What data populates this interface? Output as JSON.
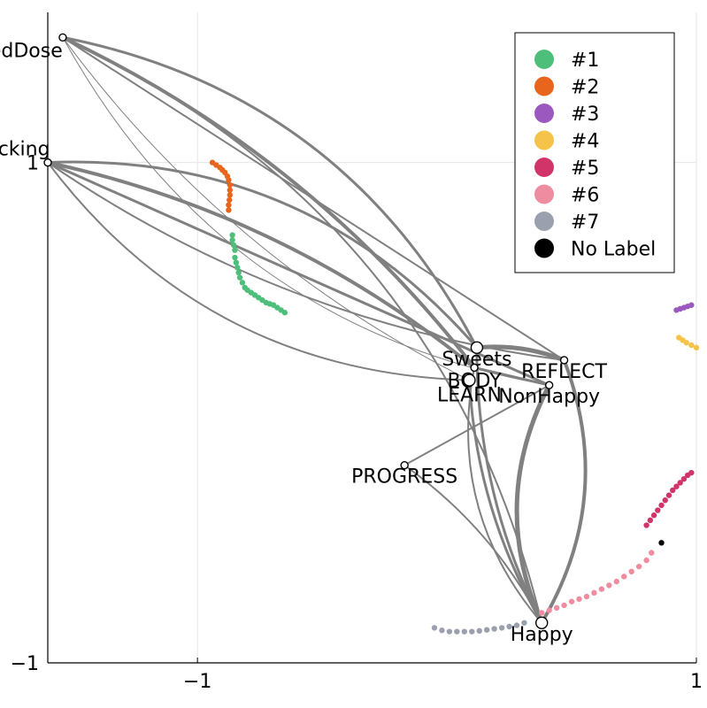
{
  "chart_data": {
    "type": "scatter",
    "title": "",
    "xlabel": "",
    "ylabel": "",
    "xlim": [
      -1.6,
      1.0
    ],
    "ylim": [
      -1.0,
      1.6
    ],
    "xticks": [
      {
        "value": -1,
        "label": "−1"
      },
      {
        "value": 1,
        "label": "1"
      }
    ],
    "yticks": [
      {
        "value": -1,
        "label": "−1"
      },
      {
        "value": 1,
        "label": "1"
      }
    ],
    "grid": true,
    "legend_position": "top-right",
    "legend": [
      {
        "label": "#1",
        "color": "#4dbf7a"
      },
      {
        "label": "#2",
        "color": "#e8651e"
      },
      {
        "label": "#3",
        "color": "#9b59c0"
      },
      {
        "label": "#4",
        "color": "#f5c24a"
      },
      {
        "label": "#5",
        "color": "#d13468"
      },
      {
        "label": "#6",
        "color": "#f08ca0"
      },
      {
        "label": "#7",
        "color": "#9aa0ae"
      },
      {
        "label": "No Label",
        "color": "#000000"
      }
    ],
    "nodes": [
      {
        "name": "SkippedDose",
        "x": -1.54,
        "y": 1.5,
        "big": false,
        "label_dx": -72,
        "label_dy": 22
      },
      {
        "name": "eTracking",
        "x": -1.6,
        "y": 1.0,
        "big": false,
        "label_dx": -50,
        "label_dy": -8
      },
      {
        "name": "Sweets",
        "x": 0.12,
        "y": 0.26,
        "big": true,
        "label_dx": 0,
        "label_dy": 20
      },
      {
        "name": "REFLECT",
        "x": 0.47,
        "y": 0.21,
        "big": false,
        "label_dx": 0,
        "label_dy": 20
      },
      {
        "name": "BODY",
        "x": 0.11,
        "y": 0.18,
        "big": false,
        "label_dx": 0,
        "label_dy": 22
      },
      {
        "name": "NonHappy",
        "x": 0.41,
        "y": 0.11,
        "big": false,
        "label_dx": 0,
        "label_dy": 20
      },
      {
        "name": "LEARN",
        "x": 0.09,
        "y": 0.13,
        "big": true,
        "label_dx": 0,
        "label_dy": 24
      },
      {
        "name": "PROGRESS",
        "x": -0.17,
        "y": -0.21,
        "big": false,
        "label_dx": 0,
        "label_dy": 20
      },
      {
        "name": "Happy",
        "x": 0.38,
        "y": -0.84,
        "big": true,
        "label_dx": 0,
        "label_dy": 20
      }
    ],
    "series": [
      {
        "name": "#1",
        "color": "#4dbf7a",
        "points": [
          [
            -0.86,
            0.71
          ],
          [
            -0.86,
            0.69
          ],
          [
            -0.855,
            0.67
          ],
          [
            -0.85,
            0.65
          ],
          [
            -0.85,
            0.62
          ],
          [
            -0.845,
            0.6
          ],
          [
            -0.84,
            0.58
          ],
          [
            -0.835,
            0.56
          ],
          [
            -0.83,
            0.54
          ],
          [
            -0.82,
            0.52
          ],
          [
            -0.81,
            0.5
          ],
          [
            -0.8,
            0.49
          ],
          [
            -0.785,
            0.48
          ],
          [
            -0.77,
            0.47
          ],
          [
            -0.755,
            0.46
          ],
          [
            -0.74,
            0.45
          ],
          [
            -0.725,
            0.44
          ],
          [
            -0.71,
            0.435
          ],
          [
            -0.695,
            0.43
          ],
          [
            -0.68,
            0.42
          ],
          [
            -0.665,
            0.41
          ],
          [
            -0.65,
            0.4
          ]
        ]
      },
      {
        "name": "#2",
        "color": "#e8651e",
        "points": [
          [
            -0.94,
            1.0
          ],
          [
            -0.925,
            0.99
          ],
          [
            -0.91,
            0.98
          ],
          [
            -0.9,
            0.97
          ],
          [
            -0.89,
            0.96
          ],
          [
            -0.88,
            0.945
          ],
          [
            -0.875,
            0.93
          ],
          [
            -0.87,
            0.91
          ],
          [
            -0.87,
            0.89
          ],
          [
            -0.87,
            0.87
          ],
          [
            -0.872,
            0.85
          ],
          [
            -0.875,
            0.83
          ],
          [
            -0.875,
            0.81
          ]
        ]
      },
      {
        "name": "#3",
        "color": "#9b59c0",
        "points": [
          [
            0.92,
            0.41
          ],
          [
            0.935,
            0.415
          ],
          [
            0.95,
            0.42
          ],
          [
            0.965,
            0.425
          ],
          [
            0.98,
            0.43
          ]
        ]
      },
      {
        "name": "#4",
        "color": "#f5c24a",
        "points": [
          [
            0.93,
            0.3
          ],
          [
            0.945,
            0.29
          ],
          [
            0.96,
            0.28
          ],
          [
            0.98,
            0.27
          ],
          [
            1.0,
            0.26
          ]
        ]
      },
      {
        "name": "#5",
        "color": "#d13468",
        "points": [
          [
            0.8,
            -0.45
          ],
          [
            0.815,
            -0.43
          ],
          [
            0.83,
            -0.41
          ],
          [
            0.845,
            -0.39
          ],
          [
            0.86,
            -0.37
          ],
          [
            0.875,
            -0.35
          ],
          [
            0.89,
            -0.33
          ],
          [
            0.905,
            -0.31
          ],
          [
            0.92,
            -0.295
          ],
          [
            0.935,
            -0.28
          ],
          [
            0.95,
            -0.265
          ],
          [
            0.965,
            -0.25
          ],
          [
            0.98,
            -0.24
          ]
        ]
      },
      {
        "name": "#6",
        "color": "#f08ca0",
        "points": [
          [
            0.38,
            -0.8
          ],
          [
            0.41,
            -0.79
          ],
          [
            0.44,
            -0.78
          ],
          [
            0.47,
            -0.77
          ],
          [
            0.5,
            -0.755
          ],
          [
            0.53,
            -0.745
          ],
          [
            0.56,
            -0.735
          ],
          [
            0.59,
            -0.72
          ],
          [
            0.62,
            -0.705
          ],
          [
            0.65,
            -0.69
          ],
          [
            0.68,
            -0.675
          ],
          [
            0.71,
            -0.655
          ],
          [
            0.74,
            -0.635
          ],
          [
            0.77,
            -0.615
          ],
          [
            0.8,
            -0.59
          ],
          [
            0.82,
            -0.56
          ]
        ]
      },
      {
        "name": "#7",
        "color": "#9aa0ae",
        "points": [
          [
            -0.05,
            -0.86
          ],
          [
            -0.02,
            -0.87
          ],
          [
            0.01,
            -0.875
          ],
          [
            0.04,
            -0.875
          ],
          [
            0.07,
            -0.875
          ],
          [
            0.1,
            -0.875
          ],
          [
            0.13,
            -0.872
          ],
          [
            0.16,
            -0.868
          ],
          [
            0.19,
            -0.864
          ],
          [
            0.22,
            -0.86
          ],
          [
            0.25,
            -0.855
          ],
          [
            0.28,
            -0.85
          ],
          [
            0.31,
            -0.84
          ]
        ]
      },
      {
        "name": "No Label",
        "color": "#000000",
        "points": [
          [
            0.86,
            -0.52
          ]
        ]
      }
    ],
    "edges": [
      {
        "from": "SkippedDose",
        "to": "Sweets",
        "width": 3
      },
      {
        "from": "SkippedDose",
        "to": "BODY",
        "width": 4
      },
      {
        "from": "SkippedDose",
        "to": "REFLECT",
        "width": 2
      },
      {
        "from": "SkippedDose",
        "to": "LEARN",
        "width": 1
      },
      {
        "from": "SkippedDose",
        "to": "NonHappy",
        "width": 1
      },
      {
        "from": "eTracking",
        "to": "Sweets",
        "width": 3
      },
      {
        "from": "eTracking",
        "to": "BODY",
        "width": 4
      },
      {
        "from": "eTracking",
        "to": "NonHappy",
        "width": 3
      },
      {
        "from": "eTracking",
        "to": "REFLECT",
        "width": 2
      },
      {
        "from": "eTracking",
        "to": "LEARN",
        "width": 2
      },
      {
        "from": "SkippedDose",
        "to": "Happy",
        "width": 2
      },
      {
        "from": "Sweets",
        "to": "REFLECT",
        "width": 5
      },
      {
        "from": "BODY",
        "to": "NonHappy",
        "width": 3
      },
      {
        "from": "LEARN",
        "to": "Happy",
        "width": 3
      },
      {
        "from": "NonHappy",
        "to": "Happy",
        "width": 5
      },
      {
        "from": "REFLECT",
        "to": "Happy",
        "width": 4
      },
      {
        "from": "PROGRESS",
        "to": "Happy",
        "width": 2
      },
      {
        "from": "PROGRESS",
        "to": "NonHappy",
        "width": 2
      },
      {
        "from": "Sweets",
        "to": "Happy",
        "width": 3
      },
      {
        "from": "BODY",
        "to": "Happy",
        "width": 2
      }
    ]
  }
}
